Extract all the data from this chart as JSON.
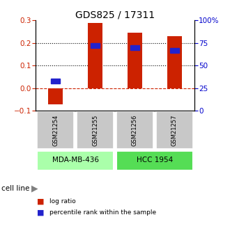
{
  "title": "GDS825 / 17311",
  "samples": [
    "GSM21254",
    "GSM21255",
    "GSM21256",
    "GSM21257"
  ],
  "log_ratio": [
    -0.072,
    0.29,
    0.245,
    0.23
  ],
  "percentile_rank": [
    33,
    72,
    70,
    67
  ],
  "cell_lines": [
    {
      "label": "MDA-MB-436",
      "samples": [
        0,
        1
      ],
      "color": "#aaffaa"
    },
    {
      "label": "HCC 1954",
      "samples": [
        2,
        3
      ],
      "color": "#55dd55"
    }
  ],
  "ylim_left": [
    -0.1,
    0.3
  ],
  "ylim_right": [
    0,
    100
  ],
  "yticks_left": [
    -0.1,
    0.0,
    0.1,
    0.2,
    0.3
  ],
  "yticks_right": [
    0,
    25,
    50,
    75,
    100
  ],
  "ytick_labels_right": [
    "0",
    "25",
    "50",
    "75",
    "100%"
  ],
  "bar_color": "#cc2200",
  "dot_color": "#2222cc",
  "zero_line_color": "#cc2200",
  "title_fontsize": 10,
  "tick_fontsize": 7.5,
  "bg_color": "#ffffff",
  "sample_box_color": "#c8c8c8"
}
